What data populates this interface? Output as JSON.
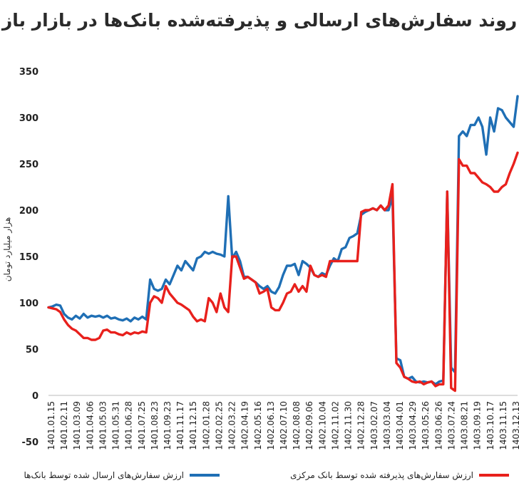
{
  "title": "روند سفارش‌های ارسالی و پذیرفته‌شده بانک‌ها در بازار باز",
  "chart_data": {
    "type": "line",
    "title": "روند سفارش‌های ارسالی و پذیرفته‌شده بانک‌ها در بازار باز",
    "ylabel": "هزار میلیارد تومان",
    "ylim": [
      -50,
      350
    ],
    "yticks": [
      -50,
      0,
      50,
      100,
      150,
      200,
      250,
      300,
      350
    ],
    "grid": false,
    "legend_position": "bottom",
    "x_tick_labels": [
      "1401.01.15",
      "1401.02.11",
      "1401.03.09",
      "1401.04.06",
      "1401.05.03",
      "1401.05.31",
      "1401.06.28",
      "1401.07.25",
      "1401.08.23",
      "1401.09.23",
      "1401.11.17",
      "1401.12.15",
      "1402.01.28",
      "1402.02.25",
      "1402.03.22",
      "1402.04.19",
      "1402.05.16",
      "1402.06.13",
      "1402.07.10",
      "1402.08.08",
      "1402.09.06",
      "1402.10.04",
      "1402.11.02",
      "1402.11.30",
      "1402.12.28",
      "1403.02.07",
      "1403.03.04",
      "1403.04.01",
      "1403.04.29",
      "1403.05.26",
      "1403.06.26",
      "1403.07.24",
      "1403.08.21",
      "1403.09.19",
      "1403.10.17",
      "1403.11.15",
      "1403.12.13"
    ],
    "series": [
      {
        "name": "ارزش سفارش‌های ارسال شده توسط بانک‌ها",
        "color": "#1f6fb5",
        "values": [
          95,
          96,
          98,
          97,
          88,
          84,
          82,
          86,
          83,
          88,
          84,
          86,
          85,
          86,
          84,
          86,
          83,
          84,
          82,
          81,
          83,
          80,
          84,
          82,
          85,
          82,
          125,
          115,
          113,
          115,
          125,
          120,
          130,
          140,
          135,
          145,
          140,
          135,
          148,
          150,
          155,
          153,
          155,
          153,
          152,
          150,
          215,
          148,
          155,
          145,
          128,
          128,
          125,
          122,
          118,
          115,
          118,
          112,
          110,
          117,
          130,
          140,
          140,
          142,
          130,
          145,
          142,
          138,
          130,
          128,
          132,
          130,
          140,
          148,
          145,
          158,
          160,
          170,
          172,
          175,
          195,
          198,
          200,
          202,
          200,
          205,
          200,
          200,
          215,
          40,
          38,
          20,
          18,
          20,
          15,
          14,
          15,
          14,
          15,
          12,
          15,
          16,
          220,
          30,
          25,
          280,
          285,
          280,
          292,
          292,
          300,
          290,
          260,
          300,
          285,
          310,
          308,
          300,
          295,
          290,
          323
        ]
      },
      {
        "name": "ارزش سفارش‌های پذیرفته شده توسط بانک مرکزی",
        "color": "#e8201c",
        "values": [
          95,
          94,
          93,
          90,
          82,
          76,
          72,
          70,
          66,
          62,
          62,
          60,
          60,
          62,
          70,
          71,
          68,
          68,
          66,
          65,
          68,
          66,
          68,
          67,
          69,
          68,
          100,
          107,
          105,
          100,
          118,
          110,
          105,
          100,
          98,
          95,
          92,
          85,
          80,
          82,
          80,
          105,
          100,
          90,
          110,
          95,
          90,
          150,
          150,
          138,
          126,
          128,
          125,
          122,
          110,
          112,
          115,
          95,
          92,
          92,
          100,
          110,
          112,
          120,
          112,
          118,
          112,
          140,
          130,
          128,
          130,
          128,
          145,
          145,
          145,
          145,
          145,
          145,
          145,
          145,
          198,
          200,
          200,
          202,
          200,
          205,
          200,
          205,
          228,
          35,
          30,
          20,
          18,
          15,
          14,
          15,
          12,
          14,
          15,
          10,
          12,
          12,
          220,
          8,
          5,
          255,
          248,
          248,
          240,
          240,
          235,
          230,
          228,
          225,
          220,
          220,
          225,
          228,
          240,
          250,
          262
        ]
      }
    ]
  },
  "legend": {
    "blue_label": "ارزش سفارش‌های ارسال شده توسط بانک‌ها",
    "red_label": "ارزش سفارش‌های پذیرفته شده توسط بانک مرکزی"
  }
}
